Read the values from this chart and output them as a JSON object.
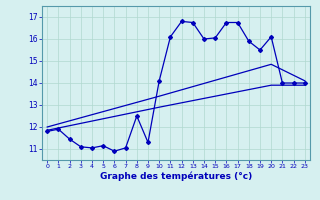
{
  "xlabel": "Graphe des températures (°c)",
  "bg_color": "#d6f0f0",
  "line_color": "#0000bb",
  "ylim": [
    10.5,
    17.5
  ],
  "xlim": [
    -0.5,
    23.5
  ],
  "yticks": [
    11,
    12,
    13,
    14,
    15,
    16,
    17
  ],
  "xticks": [
    0,
    1,
    2,
    3,
    4,
    5,
    6,
    7,
    8,
    9,
    10,
    11,
    12,
    13,
    14,
    15,
    16,
    17,
    18,
    19,
    20,
    21,
    22,
    23
  ],
  "series1_x": [
    0,
    1,
    2,
    3,
    4,
    5,
    6,
    7,
    8,
    9,
    10,
    11,
    12,
    13,
    14,
    15,
    16,
    17,
    18,
    19,
    20,
    21,
    22,
    23
  ],
  "series1_y": [
    11.8,
    11.9,
    11.45,
    11.1,
    11.05,
    11.15,
    10.9,
    11.05,
    12.5,
    11.3,
    14.1,
    16.1,
    16.8,
    16.75,
    16.0,
    16.05,
    16.75,
    16.75,
    15.9,
    15.5,
    16.1,
    14.0,
    14.0,
    14.0
  ],
  "series2_x": [
    0,
    10,
    20,
    23
  ],
  "series2_y": [
    12.0,
    13.4,
    14.85,
    14.1
  ],
  "series3_x": [
    0,
    10,
    20,
    23
  ],
  "series3_y": [
    11.85,
    12.9,
    13.9,
    13.9
  ],
  "grid_color": "#b0d8d0",
  "marker": "D",
  "markersize": 2.0,
  "linewidth": 0.9
}
